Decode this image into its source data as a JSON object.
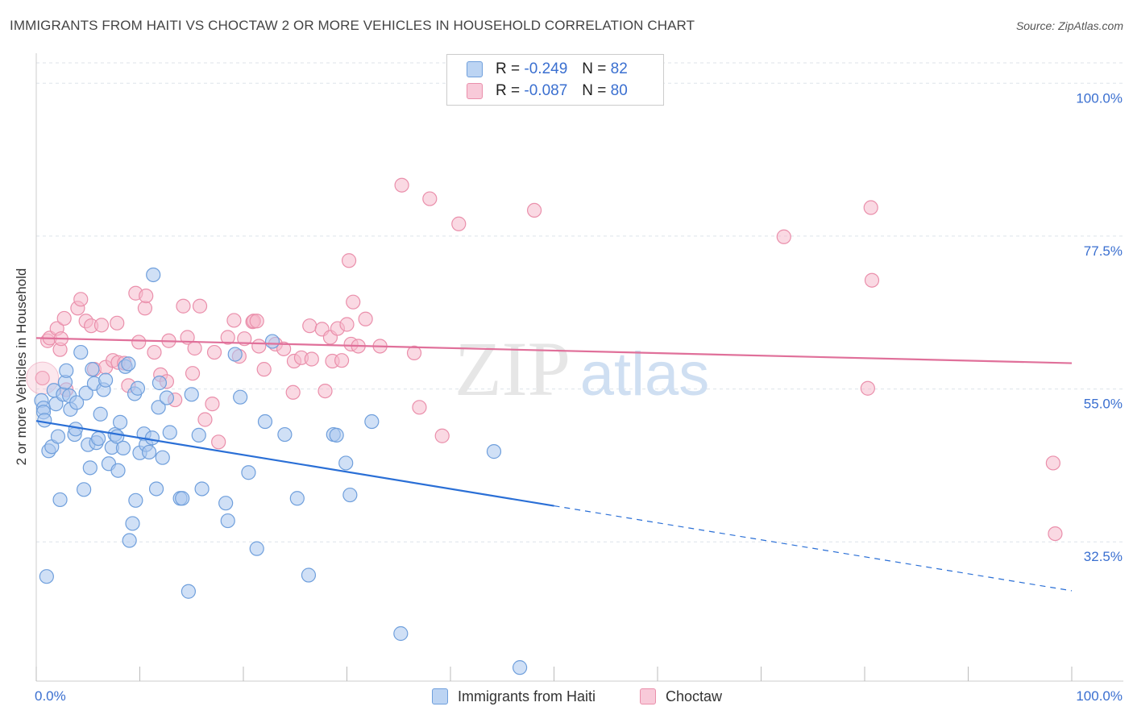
{
  "title": "IMMIGRANTS FROM HAITI VS CHOCTAW 2 OR MORE VEHICLES IN HOUSEHOLD CORRELATION CHART",
  "source": "Source: ZipAtlas.com",
  "watermark": {
    "zip": "ZIP",
    "atlas": "atlas"
  },
  "legend_top": [
    {
      "r_label": "R =",
      "r_value": "-0.249",
      "n_label": "N =",
      "n_value": "82"
    },
    {
      "r_label": "R =",
      "r_value": "-0.087",
      "n_label": "N =",
      "n_value": "80"
    }
  ],
  "chart_data": {
    "type": "scatter",
    "title": "IMMIGRANTS FROM HAITI VS CHOCTAW 2 OR MORE VEHICLES IN HOUSEHOLD CORRELATION CHART",
    "xlabel": "",
    "ylabel": "2 or more Vehicles in Household",
    "xlim": [
      0,
      100
    ],
    "ylim": [
      12,
      103
    ],
    "x_tick_labels": [
      "0.0%",
      "100.0%"
    ],
    "y_ticks": [
      {
        "value": 100.0,
        "label": "100.0%"
      },
      {
        "value": 77.5,
        "label": "77.5%"
      },
      {
        "value": 55.0,
        "label": "55.0%"
      },
      {
        "value": 32.5,
        "label": "32.5%"
      }
    ],
    "colors": {
      "haiti_fill": "#a9c6ef",
      "haiti_stroke": "#6f9fdc",
      "haiti_line": "#2a6fd6",
      "choctaw_fill": "#f5b9cc",
      "choctaw_stroke": "#ea8fab",
      "choctaw_line": "#e0709a",
      "tick_label": "#3a6fd0",
      "grid": "#dde3ea"
    },
    "series": [
      {
        "name": "Immigrants from Haiti",
        "r": -0.249,
        "n": 82,
        "trend": {
          "x0": 0,
          "y0": 50.3,
          "x1": 50,
          "y1": 37.8,
          "dash_x1": 100,
          "dash_y1": 25.3
        },
        "points": [
          [
            0.5,
            53.3
          ],
          [
            0.7,
            52.2
          ],
          [
            0.7,
            51.6
          ],
          [
            0.8,
            50.4
          ],
          [
            1.0,
            27.4
          ],
          [
            1.2,
            45.9
          ],
          [
            1.5,
            46.5
          ],
          [
            1.7,
            54.8
          ],
          [
            1.9,
            52.8
          ],
          [
            2.1,
            48.0
          ],
          [
            2.3,
            38.7
          ],
          [
            2.6,
            54.2
          ],
          [
            2.8,
            56.0
          ],
          [
            2.9,
            57.7
          ],
          [
            3.2,
            54.0
          ],
          [
            3.3,
            52.0
          ],
          [
            3.7,
            48.3
          ],
          [
            3.8,
            49.1
          ],
          [
            3.9,
            53.0
          ],
          [
            4.3,
            60.4
          ],
          [
            4.6,
            40.2
          ],
          [
            4.8,
            54.4
          ],
          [
            5.0,
            46.8
          ],
          [
            5.2,
            43.4
          ],
          [
            5.4,
            57.9
          ],
          [
            5.6,
            55.8
          ],
          [
            5.8,
            47.1
          ],
          [
            6.0,
            47.7
          ],
          [
            6.2,
            51.3
          ],
          [
            6.5,
            54.9
          ],
          [
            6.7,
            56.3
          ],
          [
            7.0,
            44.0
          ],
          [
            7.3,
            46.4
          ],
          [
            7.6,
            48.3
          ],
          [
            7.8,
            48.0
          ],
          [
            7.9,
            43.0
          ],
          [
            8.1,
            50.1
          ],
          [
            8.4,
            46.3
          ],
          [
            8.6,
            58.3
          ],
          [
            8.9,
            58.7
          ],
          [
            9.0,
            32.7
          ],
          [
            9.3,
            35.2
          ],
          [
            9.5,
            54.3
          ],
          [
            9.6,
            38.6
          ],
          [
            9.8,
            55.1
          ],
          [
            10.0,
            45.6
          ],
          [
            10.4,
            48.4
          ],
          [
            10.6,
            46.8
          ],
          [
            10.9,
            45.7
          ],
          [
            11.2,
            47.8
          ],
          [
            11.3,
            71.8
          ],
          [
            11.6,
            40.3
          ],
          [
            11.8,
            52.3
          ],
          [
            11.9,
            55.9
          ],
          [
            12.2,
            44.9
          ],
          [
            12.6,
            53.7
          ],
          [
            12.9,
            48.6
          ],
          [
            13.9,
            38.9
          ],
          [
            14.1,
            38.9
          ],
          [
            14.7,
            25.2
          ],
          [
            15.0,
            54.2
          ],
          [
            15.7,
            48.2
          ],
          [
            16.0,
            40.3
          ],
          [
            18.3,
            38.2
          ],
          [
            18.5,
            35.6
          ],
          [
            19.2,
            60.1
          ],
          [
            19.7,
            53.8
          ],
          [
            20.5,
            42.7
          ],
          [
            21.3,
            31.5
          ],
          [
            22.1,
            50.2
          ],
          [
            22.8,
            62.0
          ],
          [
            24.0,
            48.3
          ],
          [
            25.2,
            38.9
          ],
          [
            26.3,
            27.6
          ],
          [
            28.7,
            48.3
          ],
          [
            29.0,
            48.2
          ],
          [
            29.9,
            44.1
          ],
          [
            30.3,
            39.4
          ],
          [
            32.4,
            50.2
          ],
          [
            35.2,
            19.0
          ],
          [
            44.2,
            45.8
          ],
          [
            46.7,
            14.0
          ]
        ]
      },
      {
        "name": "Choctaw",
        "r": -0.087,
        "n": 80,
        "trend": {
          "x0": 0,
          "y0": 62.5,
          "x1": 100,
          "y1": 58.8
        },
        "points": [
          [
            0.6,
            56.6
          ],
          [
            1.1,
            62.1
          ],
          [
            1.3,
            62.5
          ],
          [
            2.0,
            63.9
          ],
          [
            2.3,
            60.8
          ],
          [
            2.4,
            62.4
          ],
          [
            2.7,
            65.4
          ],
          [
            2.9,
            54.9
          ],
          [
            4.0,
            66.9
          ],
          [
            4.3,
            68.2
          ],
          [
            4.8,
            65.0
          ],
          [
            5.3,
            64.3
          ],
          [
            5.6,
            57.9
          ],
          [
            6.3,
            64.4
          ],
          [
            6.7,
            58.2
          ],
          [
            7.4,
            59.2
          ],
          [
            7.8,
            64.7
          ],
          [
            7.9,
            58.9
          ],
          [
            8.5,
            58.8
          ],
          [
            8.9,
            55.5
          ],
          [
            9.6,
            69.1
          ],
          [
            9.9,
            61.9
          ],
          [
            10.5,
            66.9
          ],
          [
            10.6,
            68.7
          ],
          [
            11.4,
            60.4
          ],
          [
            12.0,
            57.1
          ],
          [
            12.6,
            56.1
          ],
          [
            12.8,
            62.1
          ],
          [
            13.4,
            53.4
          ],
          [
            14.2,
            67.2
          ],
          [
            14.6,
            62.6
          ],
          [
            15.1,
            57.3
          ],
          [
            15.3,
            61.0
          ],
          [
            15.8,
            67.2
          ],
          [
            16.3,
            50.5
          ],
          [
            17.0,
            52.8
          ],
          [
            17.2,
            60.4
          ],
          [
            17.6,
            47.2
          ],
          [
            18.5,
            62.6
          ],
          [
            19.1,
            65.1
          ],
          [
            19.6,
            59.8
          ],
          [
            20.1,
            62.4
          ],
          [
            20.9,
            64.9
          ],
          [
            21.0,
            65.0
          ],
          [
            21.3,
            65.0
          ],
          [
            21.5,
            61.3
          ],
          [
            22.0,
            57.9
          ],
          [
            23.1,
            61.6
          ],
          [
            23.9,
            60.9
          ],
          [
            24.8,
            54.5
          ],
          [
            24.9,
            59.1
          ],
          [
            25.6,
            59.6
          ],
          [
            26.4,
            64.3
          ],
          [
            26.6,
            59.4
          ],
          [
            27.6,
            63.8
          ],
          [
            27.9,
            54.7
          ],
          [
            28.4,
            62.6
          ],
          [
            28.6,
            59.1
          ],
          [
            29.1,
            63.9
          ],
          [
            29.5,
            59.2
          ],
          [
            30.0,
            64.5
          ],
          [
            30.2,
            73.9
          ],
          [
            30.4,
            61.6
          ],
          [
            30.6,
            67.8
          ],
          [
            31.1,
            61.3
          ],
          [
            31.8,
            65.3
          ],
          [
            33.2,
            61.3
          ],
          [
            35.3,
            85.0
          ],
          [
            36.5,
            60.3
          ],
          [
            37.0,
            52.3
          ],
          [
            38.0,
            83.0
          ],
          [
            39.2,
            48.1
          ],
          [
            40.8,
            79.3
          ],
          [
            48.1,
            81.3
          ],
          [
            72.2,
            77.4
          ],
          [
            80.6,
            81.7
          ],
          [
            80.7,
            71.0
          ],
          [
            80.3,
            55.1
          ],
          [
            98.2,
            44.1
          ],
          [
            98.4,
            33.7
          ]
        ]
      }
    ],
    "legend_labels": [
      "Immigrants from Haiti",
      "Choctaw"
    ]
  }
}
